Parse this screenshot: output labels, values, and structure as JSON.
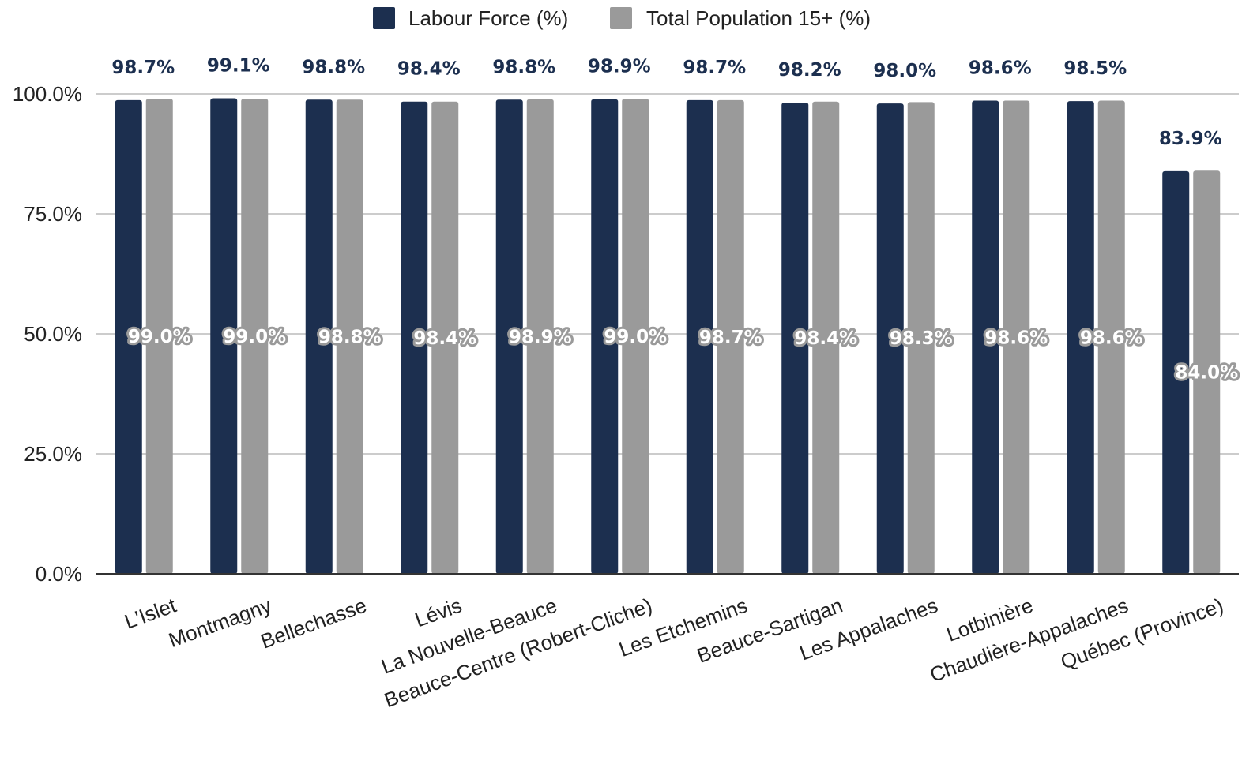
{
  "chart_data": {
    "type": "bar",
    "categories": [
      "L'Islet",
      "Montmagny",
      "Bellechasse",
      "Lévis",
      "La Nouvelle-Beauce",
      "Beauce-Centre (Robert-Cliche)",
      "Les Etchemins",
      "Beauce-Sartigan",
      "Les Appalaches",
      "Lotbinière",
      "Chaudière-Appalaches",
      "Québec (Province)"
    ],
    "series": [
      {
        "name": "Labour Force (%)",
        "color": "#1c2f4f",
        "values": [
          98.7,
          99.1,
          98.8,
          98.4,
          98.8,
          98.9,
          98.7,
          98.2,
          98.0,
          98.6,
          98.5,
          83.9
        ],
        "labels": [
          "98.7%",
          "99.1%",
          "98.8%",
          "98.4%",
          "98.8%",
          "98.9%",
          "98.7%",
          "98.2%",
          "98.0%",
          "98.6%",
          "98.5%",
          "83.9%"
        ]
      },
      {
        "name": "Total Population 15+ (%)",
        "color": "#9a9a9a",
        "values": [
          99.0,
          99.0,
          98.8,
          98.4,
          98.9,
          99.0,
          98.7,
          98.4,
          98.3,
          98.6,
          98.6,
          84.0
        ],
        "labels": [
          "99.0%",
          "99.0%",
          "98.8%",
          "98.4%",
          "98.9%",
          "99.0%",
          "98.7%",
          "98.4%",
          "98.3%",
          "98.6%",
          "98.6%",
          "84.0%"
        ]
      }
    ],
    "y_ticks": [
      0,
      25,
      50,
      75,
      100
    ],
    "y_tick_labels": [
      "0.0%",
      "25.0%",
      "50.0%",
      "75.0%",
      "100.0%"
    ],
    "ylim": [
      0,
      100
    ],
    "grid": true,
    "legend_position": "top-center"
  }
}
